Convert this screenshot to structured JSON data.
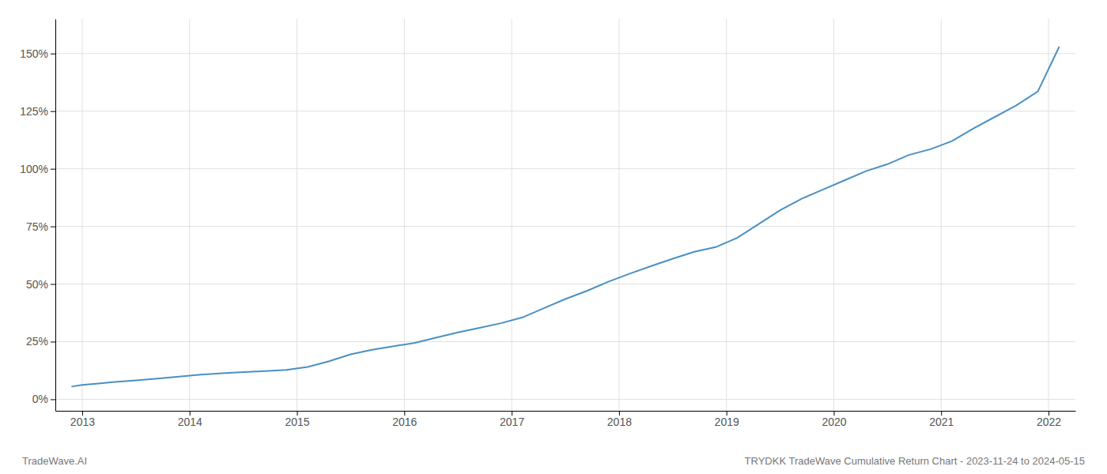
{
  "chart_data": {
    "type": "line",
    "annotations": [
      "TradeWave.AI",
      "TRYDKK TradeWave Cumulative Return Chart - 2023-11-24 to 2024-05-15"
    ],
    "x": [
      2012.9,
      2013.0,
      2013.15,
      2013.3,
      2013.5,
      2013.7,
      2013.9,
      2014.1,
      2014.3,
      2014.5,
      2014.7,
      2014.9,
      2015.1,
      2015.3,
      2015.5,
      2015.7,
      2015.9,
      2016.1,
      2016.3,
      2016.5,
      2016.7,
      2016.9,
      2017.1,
      2017.3,
      2017.5,
      2017.7,
      2017.9,
      2018.1,
      2018.3,
      2018.5,
      2018.7,
      2018.9,
      2019.1,
      2019.3,
      2019.5,
      2019.7,
      2019.9,
      2020.1,
      2020.3,
      2020.5,
      2020.7,
      2020.9,
      2021.1,
      2021.3,
      2021.5,
      2021.7,
      2021.9,
      2022.1
    ],
    "values": [
      0.055,
      0.062,
      0.068,
      0.075,
      0.082,
      0.09,
      0.098,
      0.107,
      0.113,
      0.118,
      0.122,
      0.127,
      0.14,
      0.165,
      0.195,
      0.215,
      0.23,
      0.245,
      0.268,
      0.29,
      0.31,
      0.33,
      0.355,
      0.395,
      0.435,
      0.47,
      0.51,
      0.545,
      0.578,
      0.61,
      0.64,
      0.66,
      0.7,
      0.76,
      0.82,
      0.87,
      0.91,
      0.95,
      0.99,
      1.02,
      1.06,
      1.085,
      1.12,
      1.175,
      1.225,
      1.275,
      1.335,
      1.53
    ],
    "color": "#4a90c4",
    "xlim": [
      2012.75,
      2022.25
    ],
    "xticks": [
      2013,
      2014,
      2015,
      2016,
      2017,
      2018,
      2019,
      2020,
      2021,
      2022
    ],
    "ylim": [
      -0.05,
      1.65
    ],
    "yticks": [
      {
        "value": 0.0,
        "label": "0%"
      },
      {
        "value": 0.25,
        "label": "25%"
      },
      {
        "value": 0.5,
        "label": "50%"
      },
      {
        "value": 0.75,
        "label": "75%"
      },
      {
        "value": 1.0,
        "label": "100%"
      },
      {
        "value": 1.25,
        "label": "125%"
      },
      {
        "value": 1.5,
        "label": "150%"
      }
    ],
    "grid": true
  }
}
